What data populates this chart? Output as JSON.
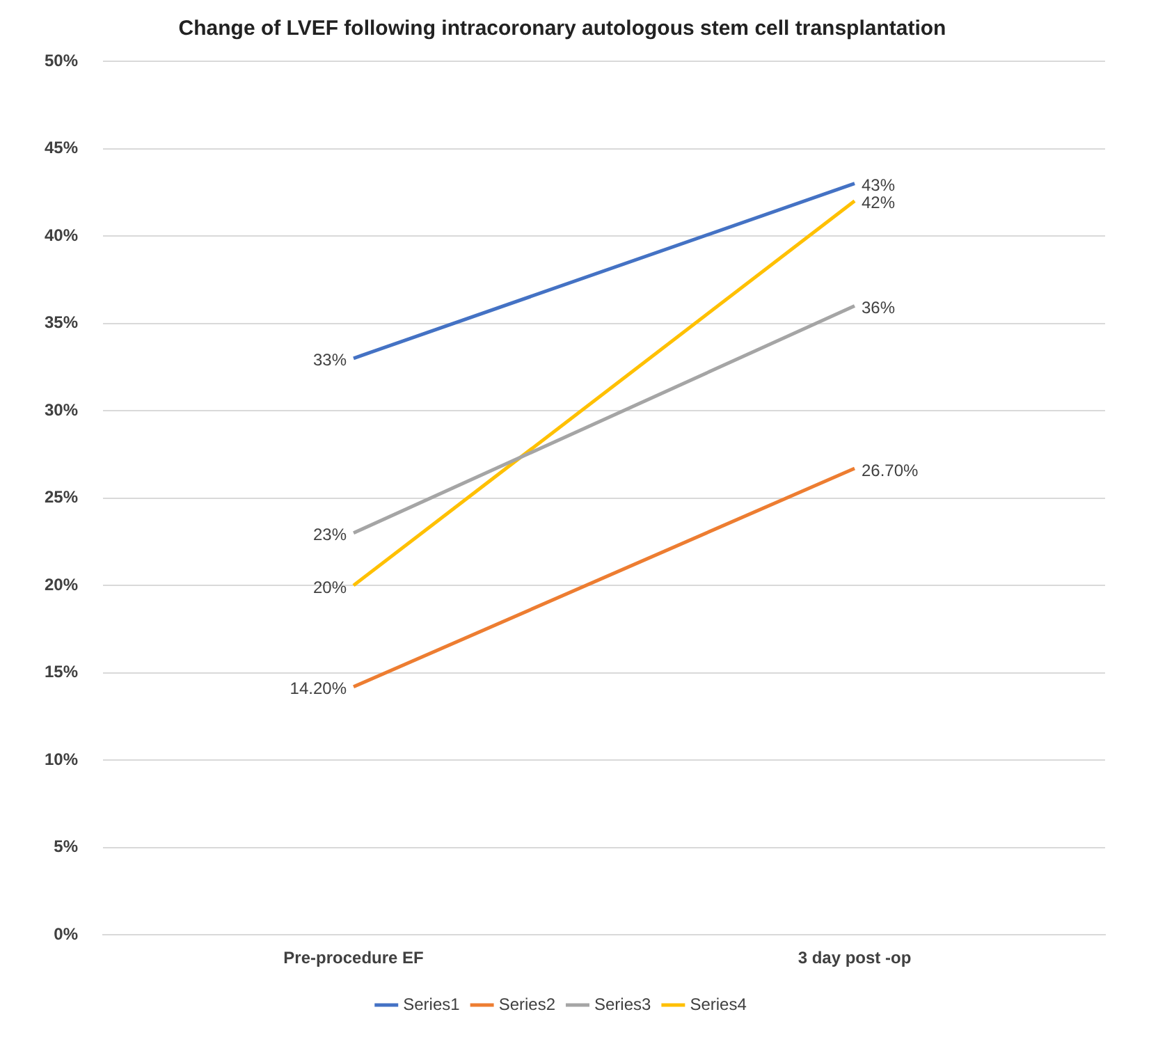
{
  "chart_data": {
    "type": "line",
    "title": "Change of LVEF following intracoronary autologous stem cell transplantation",
    "categories": [
      "Pre-procedure EF",
      "3 day post -op"
    ],
    "series": [
      {
        "name": "Series1",
        "color": "#4472c4",
        "values": [
          33,
          43
        ],
        "value_labels": [
          "33%",
          "43%"
        ]
      },
      {
        "name": "Series2",
        "color": "#ed7d31",
        "values": [
          14.2,
          26.7
        ],
        "value_labels": [
          "14.20%",
          "26.70%"
        ]
      },
      {
        "name": "Series3",
        "color": "#a5a5a5",
        "values": [
          23,
          36
        ],
        "value_labels": [
          "23%",
          "36%"
        ]
      },
      {
        "name": "Series4",
        "color": "#ffc000",
        "values": [
          20,
          42
        ],
        "value_labels": [
          "20%",
          "42%"
        ]
      }
    ],
    "ylim": [
      0,
      50
    ],
    "yticks": [
      {
        "value": 0,
        "label": "0%"
      },
      {
        "value": 5,
        "label": "5%"
      },
      {
        "value": 10,
        "label": "10%"
      },
      {
        "value": 15,
        "label": "15%"
      },
      {
        "value": 20,
        "label": "20%"
      },
      {
        "value": 25,
        "label": "25%"
      },
      {
        "value": 30,
        "label": "30%"
      },
      {
        "value": 35,
        "label": "35%"
      },
      {
        "value": 40,
        "label": "40%"
      },
      {
        "value": 45,
        "label": "45%"
      },
      {
        "value": 50,
        "label": "50%"
      }
    ],
    "grid": "y",
    "legend": "bottom",
    "marker": "none",
    "line_style": "solid"
  }
}
